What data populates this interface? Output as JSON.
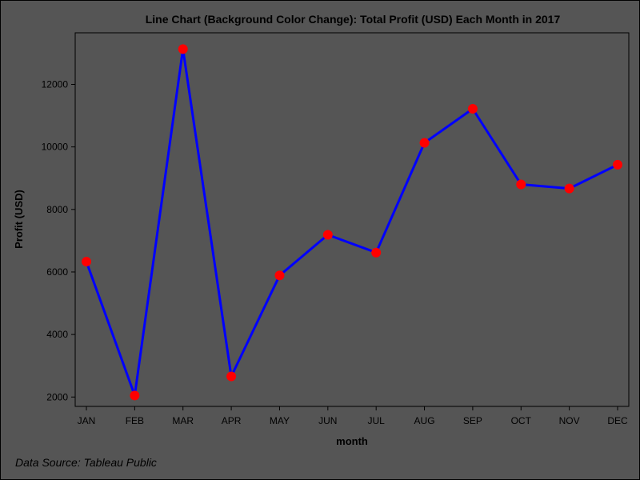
{
  "chart_data": {
    "type": "line",
    "title": "Line Chart (Background Color Change): Total Profit (USD) Each Month in 2017",
    "xlabel": "month",
    "ylabel": "Profit (USD)",
    "categories": [
      "JAN",
      "FEB",
      "MAR",
      "APR",
      "MAY",
      "JUN",
      "JUL",
      "AUG",
      "SEP",
      "OCT",
      "NOV",
      "DEC"
    ],
    "series": [
      {
        "values": [
          6330,
          2050,
          13130,
          2660,
          5890,
          7190,
          6620,
          10130,
          11220,
          8800,
          8670,
          9430
        ],
        "line_color": "#0000ff",
        "marker_color": "#ff0000"
      }
    ],
    "ylim": [
      1700,
      13650
    ],
    "yticks": [
      2000,
      4000,
      6000,
      8000,
      10000,
      12000
    ],
    "grid": false,
    "background_color": "#555555",
    "footnote": "Data Source: Tableau Public"
  }
}
